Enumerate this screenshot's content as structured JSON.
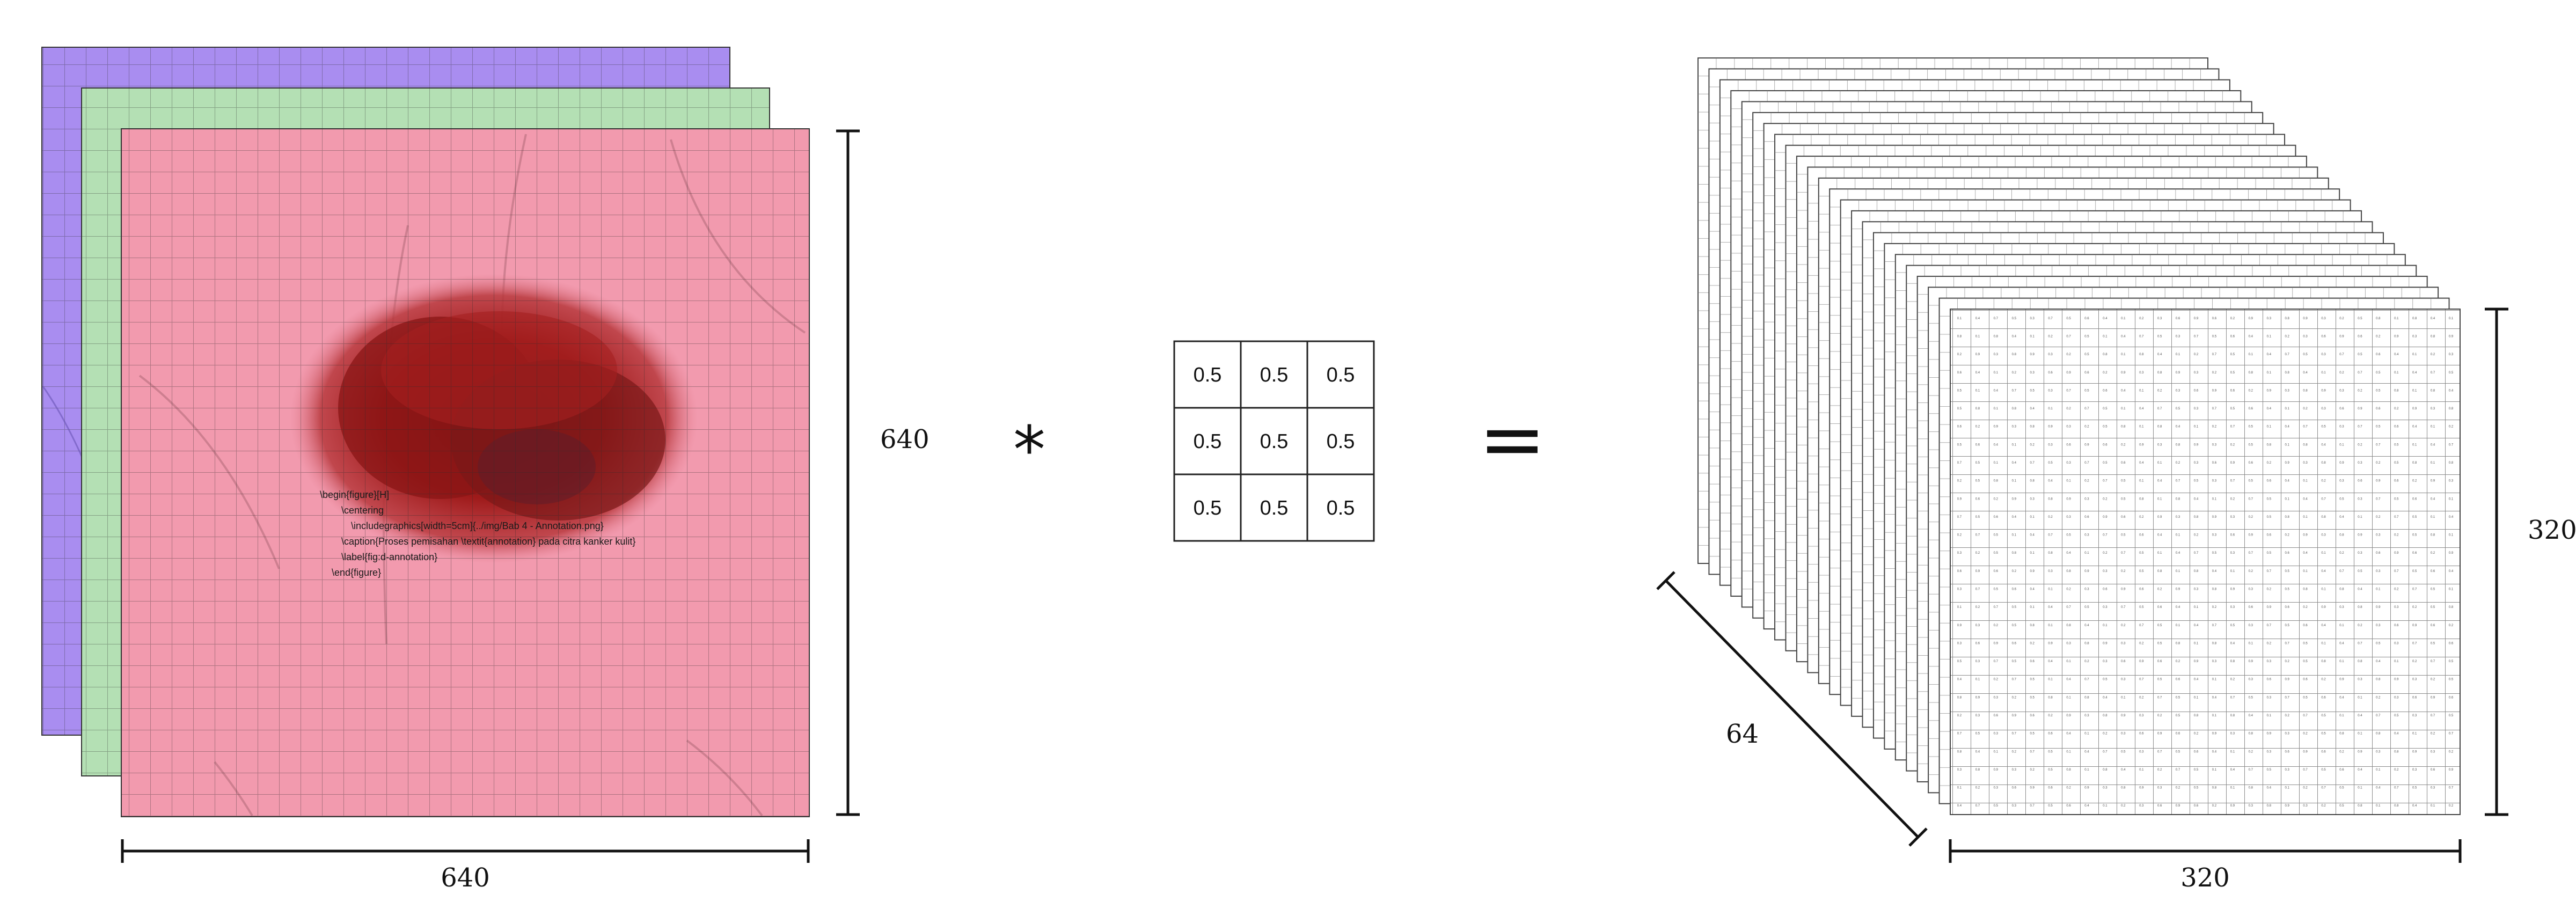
{
  "input_stack": {
    "channel_colors": [
      "#a98df0",
      "#b4e0b4",
      "#f29aae"
    ],
    "lesion_color": "#9e1a1a",
    "latex_lines": [
      "\\begin{figure}[H]",
      "\\centering",
      "\\includegraphics[width=5cm]{../img/Bab 4 - Annotation.png}",
      "\\caption{Proses pemisahan \\textit{annotation} pada citra kanker kulit}",
      "\\label{fig:d-annotation}",
      "\\end{figure}"
    ],
    "height_label": "640",
    "width_label": "640"
  },
  "operator_convolve": "*",
  "kernel": {
    "values": [
      [
        "0.5",
        "0.5",
        "0.5"
      ],
      [
        "0.5",
        "0.5",
        "0.5"
      ],
      [
        "0.5",
        "0.5",
        "0.5"
      ]
    ]
  },
  "operator_equals": "=",
  "output_stack": {
    "depth_label": "64",
    "height_label": "320",
    "width_label": "320",
    "cell_values": [
      "0.1",
      "0.2",
      "0.3",
      "0.4",
      "0.5",
      "0.6",
      "0.7",
      "0.8",
      "0.9",
      "0.5",
      "0.1",
      "0.6",
      "0.3",
      "0.8",
      "0.2",
      "0.7",
      "0.4",
      "0.9",
      "0.5",
      "0.1",
      "0.3",
      "0.6",
      "0.2",
      "0.8",
      "0.4",
      "0.7",
      "0.9",
      "0.1",
      "0.5",
      "0.3",
      "0.2"
    ]
  }
}
